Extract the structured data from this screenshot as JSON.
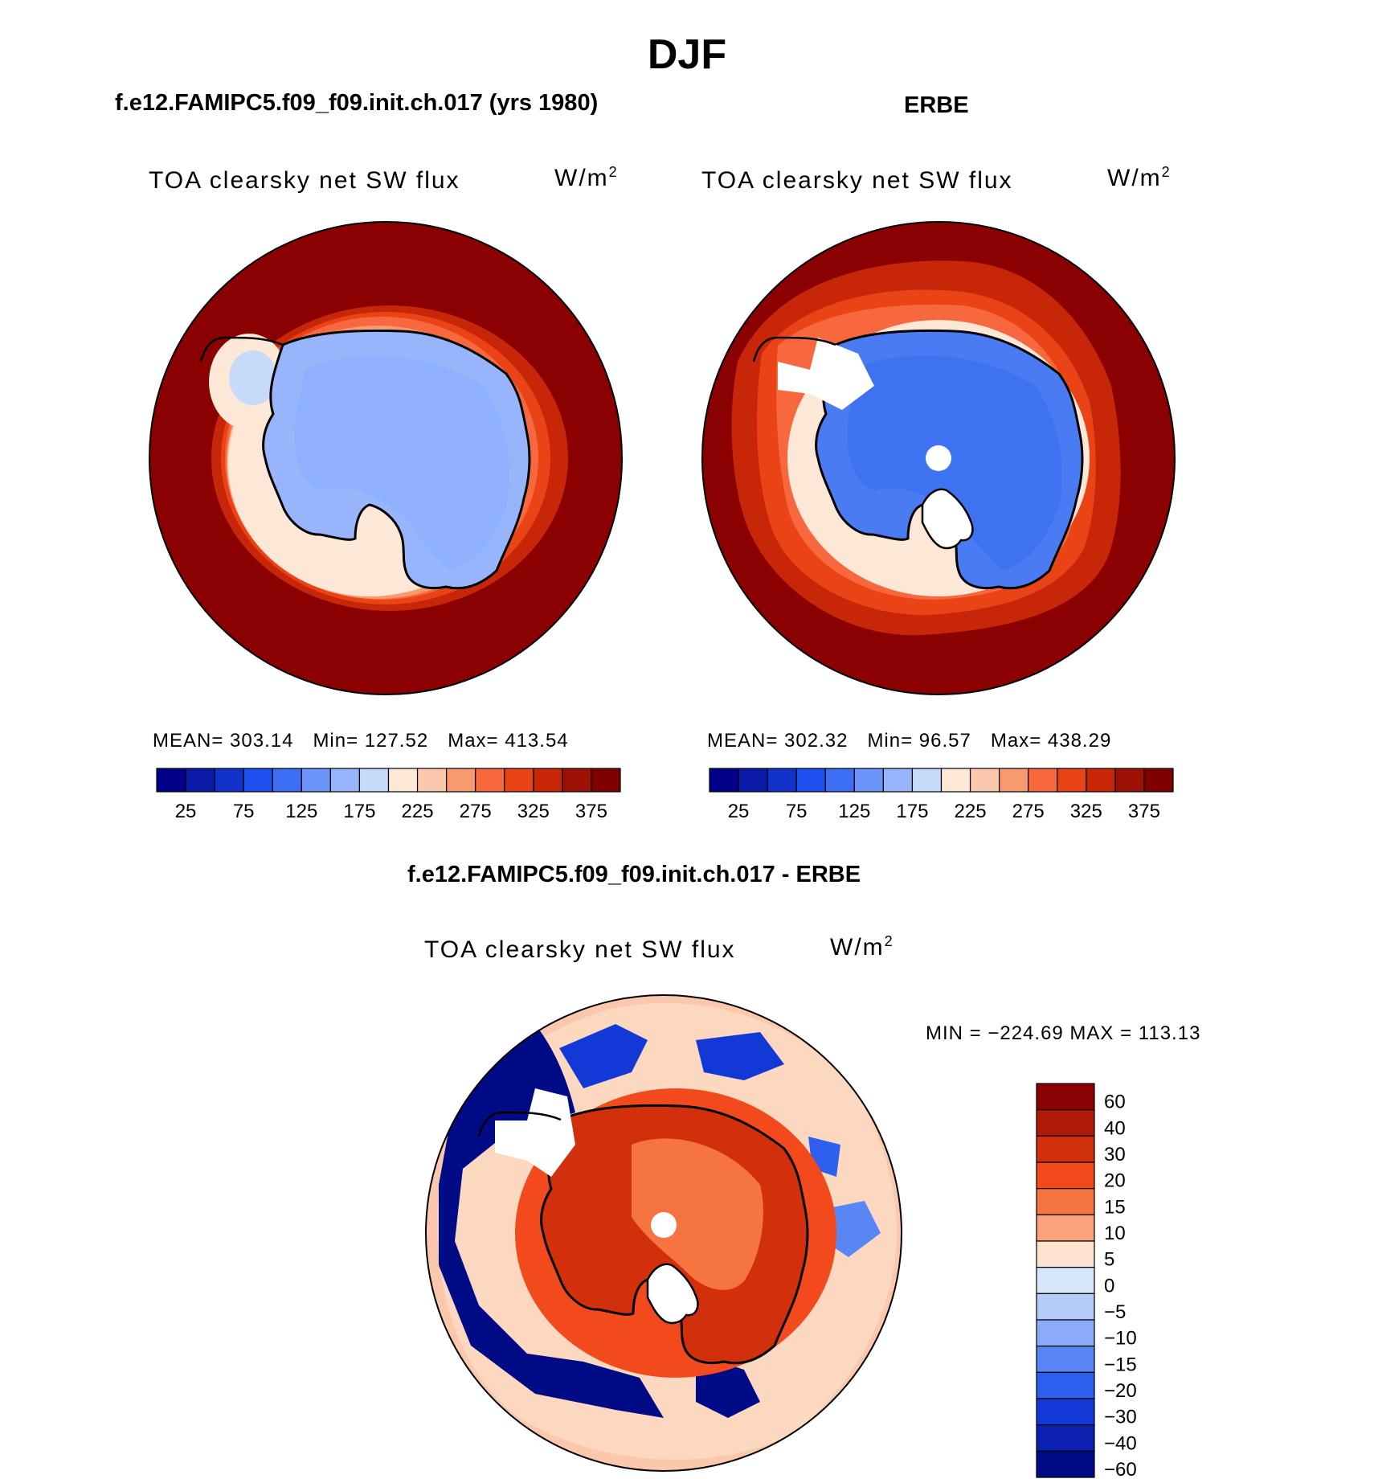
{
  "figure": {
    "title": "DJF"
  },
  "colors": {
    "ocean_red": "#8b0000",
    "ice_blue": "#8fb0ff",
    "erbe_blue": "#4a7bf2",
    "coast": "#000000"
  },
  "panels": [
    {
      "id": "model",
      "title": "f.e12.FAMIPC5.f09_f09.init.ch.017 (yrs 1980)",
      "variable": "TOA clearsky net SW flux",
      "units": "W/m",
      "units_sup": "2",
      "stats": {
        "mean": "MEAN= 303.14",
        "min": "Min= 127.52",
        "max": "Max= 413.54"
      }
    },
    {
      "id": "obs",
      "title": "ERBE",
      "variable": "TOA clearsky net SW flux",
      "units": "W/m",
      "units_sup": "2",
      "stats": {
        "mean": "MEAN= 302.32",
        "min": "Min=  96.57",
        "max": "Max= 438.29"
      }
    },
    {
      "id": "diff",
      "title": "f.e12.FAMIPC5.f09_f09.init.ch.017 - ERBE",
      "variable": "TOA clearsky net SW flux",
      "units": "W/m",
      "units_sup": "2",
      "stats": {
        "minmax": "MIN = −224.69 MAX = 113.13"
      }
    }
  ],
  "chart_data": [
    {
      "type": "heatmap",
      "projection": "south-polar-stereographic",
      "title": "f.e12.FAMIPC5.f09_f09.init.ch.017 (yrs 1980)",
      "colorbar": {
        "orientation": "horizontal",
        "colors": [
          "#00008b",
          "#0b1ba8",
          "#1232cc",
          "#1f4fee",
          "#3d6ff5",
          "#6d94f8",
          "#98b5fb",
          "#c7daf9",
          "#fde7d6",
          "#fcc8ad",
          "#f99970",
          "#f7683f",
          "#ea4316",
          "#c72708",
          "#9d1004",
          "#800000"
        ],
        "ticks": [
          "25",
          "75",
          "125",
          "175",
          "225",
          "275",
          "325",
          "375"
        ],
        "tick_values": [
          25,
          75,
          125,
          175,
          225,
          275,
          325,
          375
        ]
      },
      "stats": {
        "mean": 303.14,
        "min": 127.52,
        "max": 413.54
      }
    },
    {
      "type": "heatmap",
      "projection": "south-polar-stereographic",
      "title": "ERBE",
      "colorbar": {
        "orientation": "horizontal",
        "colors": [
          "#00008b",
          "#0b1ba8",
          "#1232cc",
          "#1f4fee",
          "#3d6ff5",
          "#6d94f8",
          "#98b5fb",
          "#c7daf9",
          "#fde7d6",
          "#fcc8ad",
          "#f99970",
          "#f7683f",
          "#ea4316",
          "#c72708",
          "#9d1004",
          "#800000"
        ],
        "ticks": [
          "25",
          "75",
          "125",
          "175",
          "225",
          "275",
          "325",
          "375"
        ],
        "tick_values": [
          25,
          75,
          125,
          175,
          225,
          275,
          325,
          375
        ]
      },
      "stats": {
        "mean": 302.32,
        "min": 96.57,
        "max": 438.29
      }
    },
    {
      "type": "heatmap",
      "projection": "south-polar-stereographic",
      "title": "f.e12.FAMIPC5.f09_f09.init.ch.017 - ERBE",
      "colorbar": {
        "orientation": "vertical",
        "colors": [
          "#8b0000",
          "#b01a06",
          "#d2300c",
          "#f24a1c",
          "#f6743f",
          "#f9a27c",
          "#fde2cf",
          "#d6e6fb",
          "#b2cbf9",
          "#8aabf7",
          "#5886f5",
          "#2e5fef",
          "#1238d6",
          "#0a20b0",
          "#000b85"
        ],
        "ticks": [
          "60",
          "40",
          "30",
          "20",
          "15",
          "10",
          "5",
          "0",
          "−5",
          "−10",
          "−15",
          "−20",
          "−30",
          "−40",
          "−60"
        ],
        "tick_values": [
          60,
          40,
          30,
          20,
          15,
          10,
          5,
          0,
          -5,
          -10,
          -15,
          -20,
          -30,
          -40,
          -60
        ]
      },
      "stats": {
        "min": -224.69,
        "max": 113.13
      }
    }
  ]
}
